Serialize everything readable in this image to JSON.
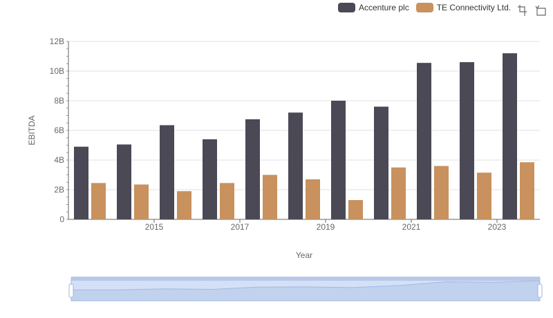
{
  "chart_data": {
    "type": "bar",
    "categories": [
      "2014",
      "2015",
      "2016",
      "2017",
      "2018",
      "2019",
      "2020",
      "2021",
      "2022",
      "2023",
      "2024"
    ],
    "series": [
      {
        "name": "Accenture plc",
        "color": "#4a4955",
        "values": [
          4.9,
          5.05,
          6.35,
          5.4,
          6.75,
          7.2,
          8.0,
          7.6,
          10.55,
          10.6,
          11.2
        ]
      },
      {
        "name": "TE Connectivity Ltd.",
        "color": "#c8915d",
        "values": [
          2.45,
          2.35,
          1.9,
          2.45,
          3.0,
          2.7,
          1.3,
          3.5,
          3.6,
          3.15,
          3.85
        ]
      }
    ],
    "x_tick_labels": [
      "2015",
      "2017",
      "2019",
      "2021",
      "2023"
    ],
    "y_tick_labels": [
      "0",
      "2B",
      "4B",
      "6B",
      "8B",
      "10B",
      "12B"
    ],
    "ylim": [
      0,
      12
    ],
    "ylabel": "EBITDA",
    "xlabel": "Year",
    "grid": true,
    "legend_position": "top-right"
  },
  "toolbox": {
    "zoom_icon": "zoom-select-icon",
    "reset_icon": "zoom-reset-icon"
  },
  "data_zoom": {
    "range_start_percent": 0,
    "range_end_percent": 100
  }
}
